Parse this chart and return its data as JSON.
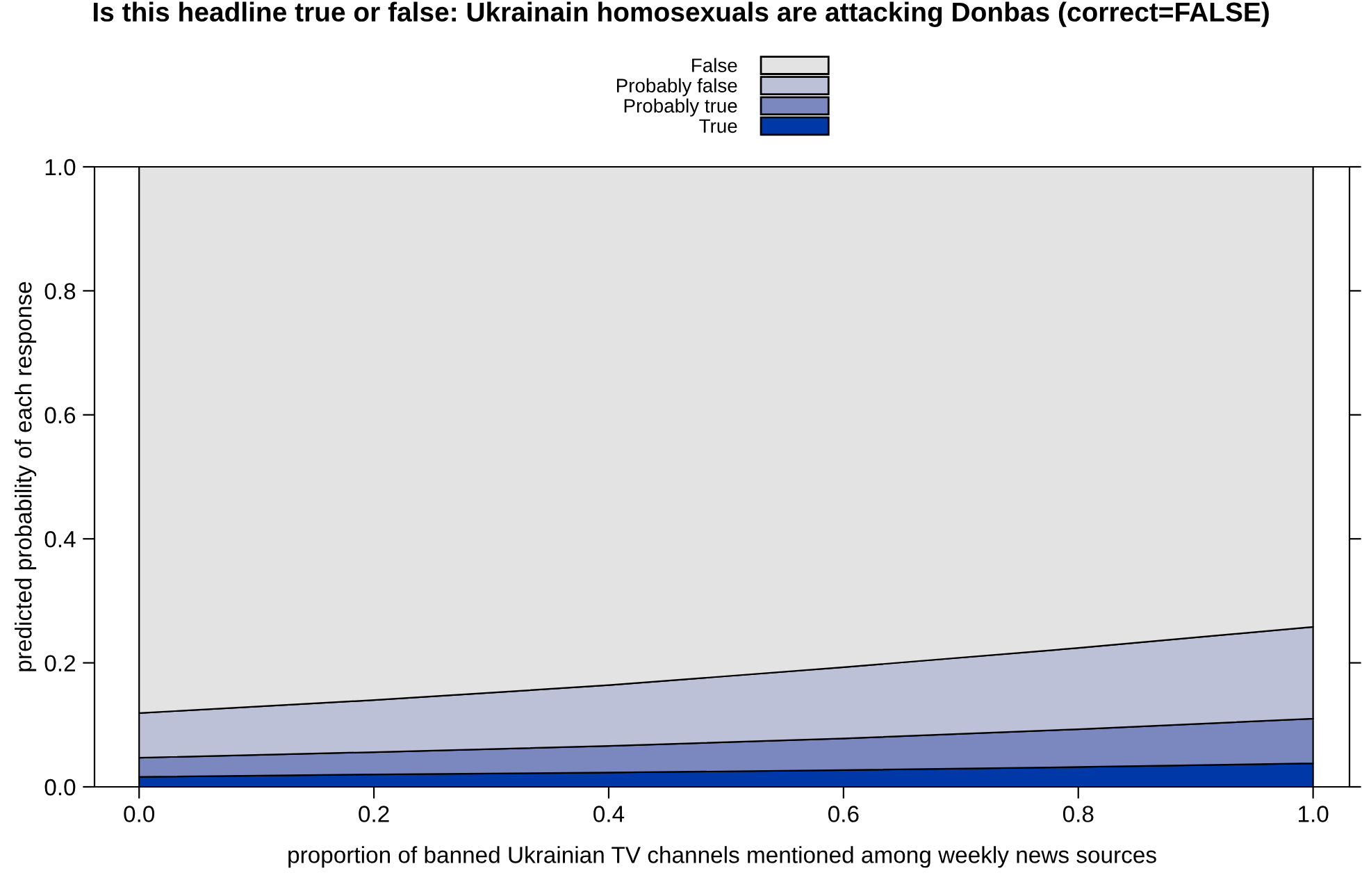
{
  "chart_data": {
    "type": "area",
    "stacked": true,
    "title": "Is this headline true or false: Ukrainain homosexuals are attacking Donbas (correct=FALSE)",
    "xlabel": "proportion of banned Ukrainian TV channels mentioned among weekly news sources",
    "ylabel": "predicted probability of each response",
    "x": [
      0,
      0.2,
      0.4,
      0.6,
      0.8,
      1.0
    ],
    "series": [
      {
        "name": "True",
        "color": "#0038a8",
        "values": [
          0.016,
          0.02,
          0.023,
          0.027,
          0.032,
          0.038
        ]
      },
      {
        "name": "Probably true",
        "color": "#7b88bf",
        "values": [
          0.031,
          0.036,
          0.043,
          0.051,
          0.061,
          0.072
        ]
      },
      {
        "name": "Probably false",
        "color": "#bcc1d8",
        "values": [
          0.072,
          0.084,
          0.098,
          0.115,
          0.131,
          0.148
        ]
      },
      {
        "name": "False",
        "color": "#e3e3e3",
        "values": [
          0.881,
          0.86,
          0.836,
          0.807,
          0.776,
          0.742
        ]
      }
    ],
    "xlim": [
      -0.038,
      1.031
    ],
    "ylim": [
      0,
      1
    ],
    "xticks": [
      {
        "value": 0,
        "label": "0.0"
      },
      0.2,
      0.4,
      0.6,
      0.8,
      {
        "value": 1,
        "label": "1.0"
      }
    ],
    "yticks": [
      {
        "value": 0,
        "label": "0.0"
      },
      0.2,
      0.4,
      0.6,
      0.8,
      {
        "value": 1,
        "label": "1.0"
      }
    ],
    "grid": false,
    "legend": "top"
  }
}
